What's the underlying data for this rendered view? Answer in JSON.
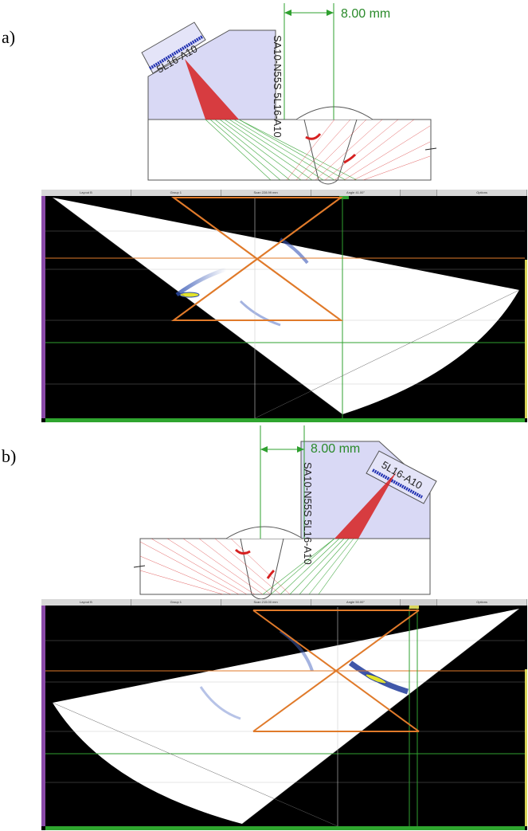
{
  "panels": [
    {
      "letter": "a)",
      "dimension": "8.00 mm",
      "probe": "5L16-A10",
      "wedge": "SA10-N55S 5L16-A10",
      "toolbar": [
        "Layout B",
        "Group 1",
        "Scan 228.99 mm",
        "Angle 41.00°",
        "Options"
      ]
    },
    {
      "letter": "b)",
      "dimension": "8.00 mm",
      "probe": "5L16-A10",
      "wedge": "SA10-N55S 5L16-A10",
      "toolbar": [
        "Layout B",
        "Group 1",
        "Scan 215.00 mm",
        "Angle 50.00°",
        "Options"
      ]
    }
  ],
  "colors": {
    "beam_red": "#d62020",
    "beam_green": "#2fa02f",
    "wedge_fill": "#d9d9f5",
    "overlay_orange": "#e07a2a",
    "scan_bg": "#000000",
    "probe_elements": "#1f2fb0"
  }
}
